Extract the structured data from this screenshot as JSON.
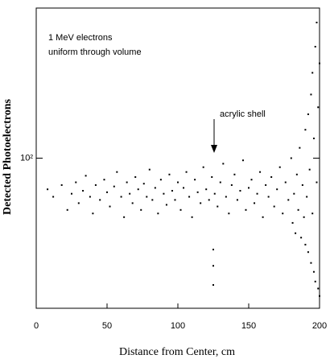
{
  "chart_data": {
    "type": "scatter",
    "ylabel": "Detected Photoelectrons",
    "xlabel": "Distance from Center, cm",
    "annotations": [
      "1 MeV electrons",
      "uniform through volume",
      "acrylic shell"
    ],
    "color": "#000000",
    "x": [
      8,
      12,
      18,
      22,
      25,
      28,
      30,
      33,
      35,
      38,
      40,
      42,
      45,
      48,
      50,
      52,
      55,
      57,
      60,
      62,
      64,
      66,
      68,
      70,
      72,
      74,
      76,
      78,
      80,
      82,
      84,
      86,
      88,
      90,
      92,
      94,
      96,
      98,
      100,
      102,
      104,
      106,
      108,
      110,
      112,
      114,
      116,
      118,
      120,
      122,
      124,
      125,
      125,
      125,
      126,
      128,
      130,
      132,
      134,
      136,
      138,
      140,
      142,
      144,
      146,
      148,
      150,
      152,
      154,
      156,
      158,
      160,
      162,
      164,
      166,
      168,
      170,
      172,
      174,
      176,
      178,
      180,
      181,
      182,
      183,
      184,
      185,
      186,
      187,
      188,
      189,
      190,
      190,
      191,
      192,
      192,
      193,
      194,
      194,
      195,
      195,
      196,
      196,
      197,
      197,
      198,
      198,
      199,
      199,
      200,
      200
    ],
    "values": [
      75,
      70,
      78,
      62,
      72,
      80,
      66,
      74,
      85,
      70,
      60,
      78,
      68,
      82,
      73,
      64,
      77,
      88,
      70,
      58,
      80,
      72,
      66,
      84,
      75,
      62,
      79,
      70,
      90,
      68,
      76,
      60,
      82,
      72,
      65,
      86,
      74,
      68,
      80,
      62,
      76,
      88,
      70,
      58,
      82,
      73,
      66,
      92,
      75,
      68,
      84,
      43,
      37,
      31,
      72,
      64,
      80,
      95,
      70,
      60,
      78,
      86,
      68,
      74,
      98,
      62,
      76,
      82,
      66,
      72,
      88,
      58,
      78,
      70,
      84,
      64,
      75,
      92,
      60,
      80,
      68,
      100,
      55,
      72,
      50,
      86,
      62,
      110,
      48,
      78,
      58,
      130,
      45,
      70,
      150,
      42,
      90,
      180,
      38,
      60,
      220,
      35,
      120,
      280,
      32,
      80,
      350,
      30,
      160,
      28,
      240
    ],
    "xlim": [
      0,
      200
    ],
    "xticks": [
      0,
      50,
      100,
      150,
      200
    ],
    "ylim": [
      25,
      400
    ],
    "yticks": [
      {
        "value": 100,
        "label": "10²"
      }
    ],
    "log_y": true
  }
}
